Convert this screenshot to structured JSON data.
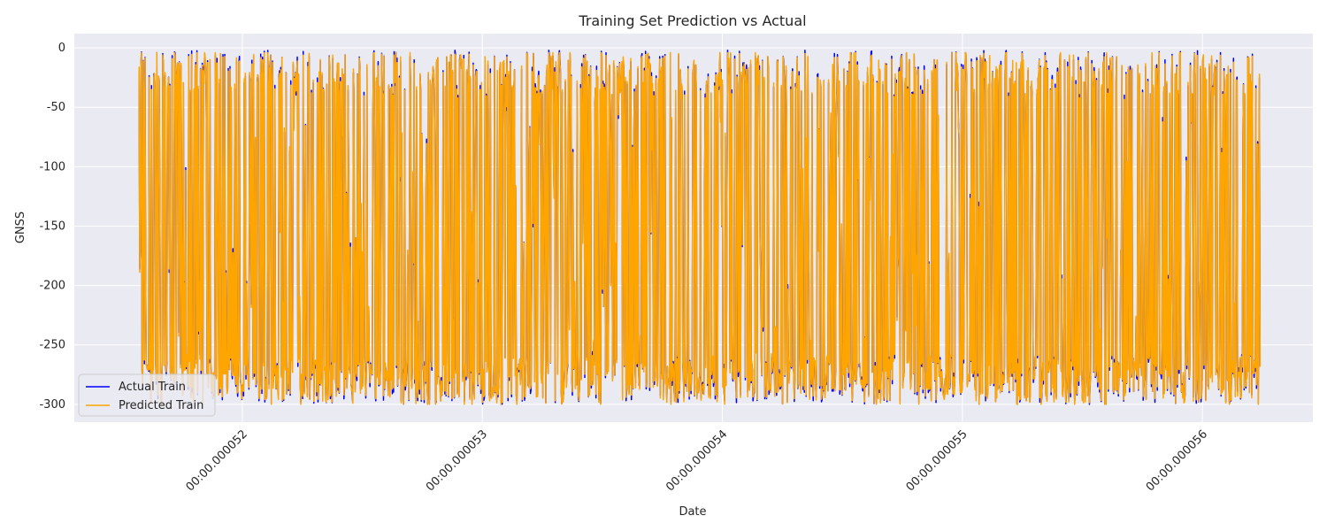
{
  "chart_data": {
    "type": "line",
    "title": "Training Set Prediction vs Actual",
    "xlabel": "Date",
    "ylabel": "GNSS",
    "x_ticks": [
      "00:00.000052",
      "00:00.000053",
      "00:00.000054",
      "00:00.000055",
      "00:00.000056"
    ],
    "x_tick_values": [
      52,
      53,
      54,
      55,
      56
    ],
    "x_range": [
      51.57,
      56.24
    ],
    "xlim": [
      51.3,
      56.46
    ],
    "y_ticks": [
      0,
      -50,
      -100,
      -150,
      -200,
      -250,
      -300
    ],
    "ylim": [
      -315,
      12
    ],
    "grid": true,
    "legend_position": "lower-left",
    "series": [
      {
        "name": "Actual Train",
        "color": "#0000ff",
        "value_range": [
          -301,
          -2
        ]
      },
      {
        "name": "Predicted Train",
        "color": "#ffa500",
        "value_range": [
          -300,
          -4
        ]
      }
    ],
    "background": "#eaeaf2",
    "grid_color": "#ffffff"
  }
}
